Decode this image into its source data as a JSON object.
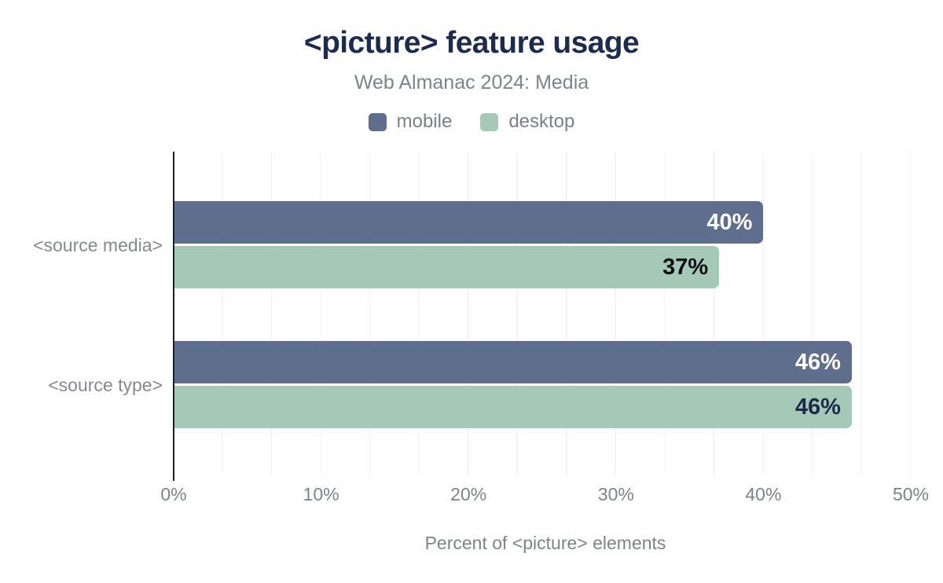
{
  "header": {
    "title": "<picture> feature usage",
    "subtitle": "Web Almanac 2024: Media"
  },
  "legend": [
    {
      "label": "mobile",
      "color": "#5f6e8c"
    },
    {
      "label": "desktop",
      "color": "#a6c9b7"
    }
  ],
  "chart_data": {
    "type": "bar",
    "orientation": "horizontal",
    "title": "<picture> feature usage",
    "subtitle": "Web Almanac 2024: Media",
    "categories": [
      "<source media>",
      "<source type>"
    ],
    "series": [
      {
        "name": "mobile",
        "color": "#5f6e8c",
        "values": [
          40,
          46
        ],
        "labels": [
          "40%",
          "46%"
        ],
        "label_colors": [
          "#ffffff",
          "#ffffff"
        ]
      },
      {
        "name": "desktop",
        "color": "#a6c9b7",
        "values": [
          37,
          46
        ],
        "labels": [
          "37%",
          "46%"
        ],
        "label_colors": [
          "#0c0e12",
          "#1c2b4a"
        ]
      }
    ],
    "xlabel": "Percent of <picture> elements",
    "ylabel": "",
    "xlim": [
      0,
      51.4
    ],
    "xticks": [
      0,
      10,
      20,
      30,
      40,
      50
    ],
    "xtick_labels": [
      "0%",
      "10%",
      "20%",
      "30%",
      "40%",
      "50%"
    ],
    "grid": "vertical-minor",
    "legend_position": "top",
    "colors": {
      "title": "#1d2b4d",
      "muted_text": "#7d828b",
      "axis_line": "#1c1d20",
      "gridline": "#f1f1f3",
      "background": "#ffffff"
    }
  }
}
